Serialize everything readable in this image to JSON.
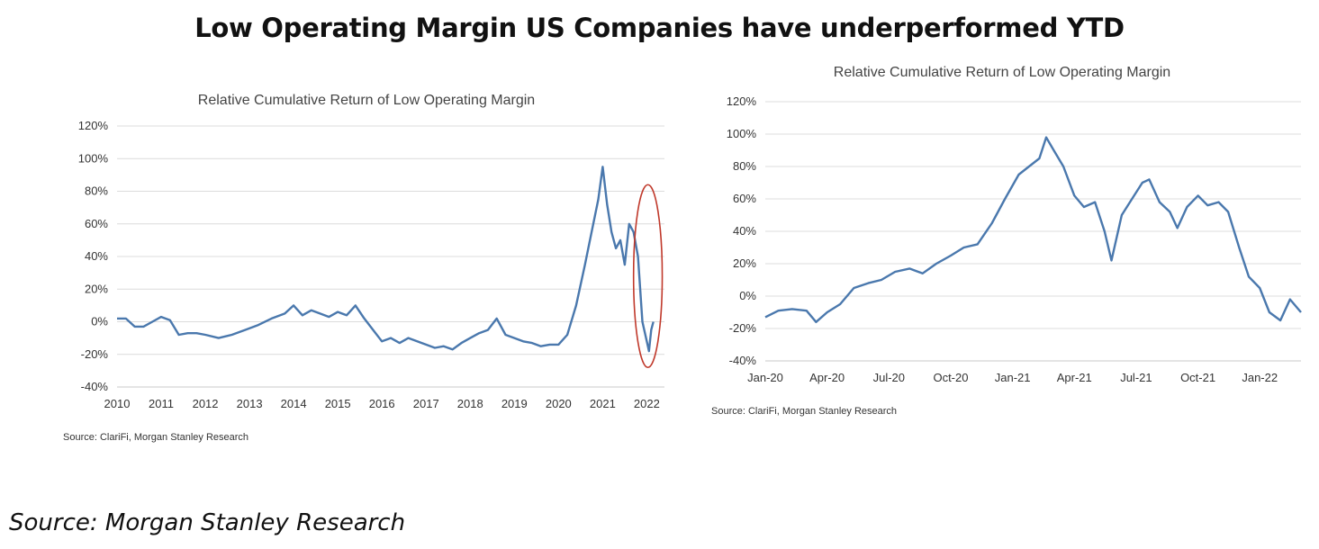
{
  "page": {
    "title": "Low Operating Margin US Companies have underperformed YTD",
    "footer_source": "Source:  Morgan Stanley Research"
  },
  "chart_data": [
    {
      "type": "line",
      "title": "Relative Cumulative Return of Low Operating Margin",
      "xlabel": "",
      "ylabel": "",
      "x_unit": "year",
      "xlim": [
        2010,
        2022.4
      ],
      "ylim": [
        -40,
        120
      ],
      "yticks": [
        "-40%",
        "-20%",
        "0%",
        "20%",
        "40%",
        "60%",
        "80%",
        "100%",
        "120%"
      ],
      "xticks": [
        "2010",
        "2011",
        "2012",
        "2013",
        "2014",
        "2015",
        "2016",
        "2017",
        "2018",
        "2019",
        "2020",
        "2021",
        "2022"
      ],
      "grid": "horizontal",
      "line_color": "#4a78ad",
      "annotation": {
        "type": "ellipse",
        "color": "#c0392b",
        "x_range": [
          2021.7,
          2022.35
        ],
        "y_range": [
          -28,
          84
        ]
      },
      "source": "Source: ClariFi, Morgan Stanley Research",
      "series": [
        {
          "x": [
            2010.0,
            2010.2,
            2010.4,
            2010.6,
            2010.8,
            2011.0,
            2011.2,
            2011.4,
            2011.6,
            2011.8,
            2012.0,
            2012.3,
            2012.6,
            2012.9,
            2013.2,
            2013.5,
            2013.8,
            2014.0,
            2014.2,
            2014.4,
            2014.6,
            2014.8,
            2015.0,
            2015.2,
            2015.4,
            2015.6,
            2015.8,
            2016.0,
            2016.2,
            2016.4,
            2016.6,
            2016.8,
            2017.0,
            2017.2,
            2017.4,
            2017.6,
            2017.8,
            2018.0,
            2018.2,
            2018.4,
            2018.6,
            2018.8,
            2019.0,
            2019.2,
            2019.4,
            2019.6,
            2019.8,
            2020.0,
            2020.2,
            2020.4,
            2020.6,
            2020.75,
            2020.9,
            2021.0,
            2021.1,
            2021.2,
            2021.3,
            2021.4,
            2021.5,
            2021.6,
            2021.7,
            2021.8,
            2021.9,
            2022.0,
            2022.05,
            2022.1,
            2022.15
          ],
          "y": [
            2,
            2,
            -3,
            -3,
            0,
            3,
            1,
            -8,
            -7,
            -7,
            -8,
            -10,
            -8,
            -5,
            -2,
            2,
            5,
            10,
            4,
            7,
            5,
            3,
            6,
            4,
            10,
            2,
            -5,
            -12,
            -10,
            -13,
            -10,
            -12,
            -14,
            -16,
            -15,
            -17,
            -13,
            -10,
            -7,
            -5,
            2,
            -8,
            -10,
            -12,
            -13,
            -15,
            -14,
            -14,
            -8,
            10,
            35,
            55,
            75,
            95,
            72,
            55,
            45,
            50,
            35,
            60,
            55,
            40,
            0,
            -12,
            -18,
            -5,
            0
          ]
        }
      ]
    },
    {
      "type": "line",
      "title": "Relative Cumulative Return of Low Operating Margin",
      "xlabel": "",
      "ylabel": "",
      "x_unit": "month",
      "xlim": [
        "2020-01",
        "2022-03"
      ],
      "ylim": [
        -40,
        120
      ],
      "yticks": [
        "-40%",
        "-20%",
        "0%",
        "20%",
        "40%",
        "60%",
        "80%",
        "100%",
        "120%"
      ],
      "xticks": [
        "Jan-20",
        "Apr-20",
        "Jul-20",
        "Oct-20",
        "Jan-21",
        "Apr-21",
        "Jul-21",
        "Oct-21",
        "Jan-22"
      ],
      "grid": "horizontal",
      "line_color": "#4a78ad",
      "source": "Source: ClariFi, Morgan Stanley Research",
      "series": [
        {
          "x": [
            "2020-01-01",
            "2020-01-20",
            "2020-02-10",
            "2020-03-01",
            "2020-03-15",
            "2020-04-01",
            "2020-04-20",
            "2020-05-10",
            "2020-06-01",
            "2020-06-20",
            "2020-07-10",
            "2020-08-01",
            "2020-08-20",
            "2020-09-10",
            "2020-10-01",
            "2020-10-20",
            "2020-11-10",
            "2020-12-01",
            "2020-12-20",
            "2021-01-10",
            "2021-01-25",
            "2021-02-10",
            "2021-02-20",
            "2021-03-01",
            "2021-03-15",
            "2021-04-01",
            "2021-04-15",
            "2021-05-01",
            "2021-05-15",
            "2021-05-25",
            "2021-06-10",
            "2021-06-25",
            "2021-07-10",
            "2021-07-20",
            "2021-08-05",
            "2021-08-20",
            "2021-09-01",
            "2021-09-15",
            "2021-10-01",
            "2021-10-15",
            "2021-11-01",
            "2021-11-15",
            "2021-12-01",
            "2021-12-15",
            "2022-01-01",
            "2022-01-15",
            "2022-02-01",
            "2022-02-15",
            "2022-03-01"
          ],
          "y": [
            -13,
            -9,
            -8,
            -9,
            -16,
            -10,
            -5,
            5,
            8,
            10,
            15,
            17,
            14,
            20,
            25,
            30,
            32,
            45,
            60,
            75,
            80,
            85,
            98,
            90,
            80,
            62,
            55,
            58,
            40,
            22,
            50,
            60,
            70,
            72,
            58,
            52,
            42,
            55,
            62,
            56,
            58,
            52,
            30,
            12,
            5,
            -10,
            -15,
            -2,
            -10
          ]
        }
      ]
    }
  ]
}
